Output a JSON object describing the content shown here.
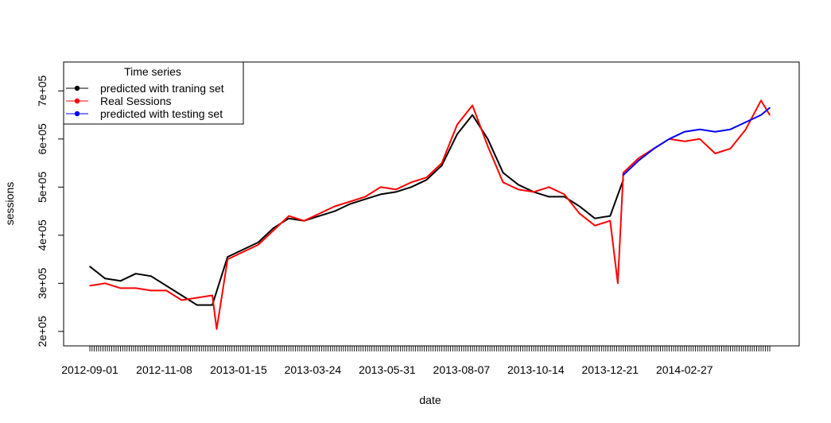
{
  "chart_data": {
    "type": "line",
    "title": "",
    "xlabel": "date",
    "ylabel": "sessions",
    "ylim": [
      170000,
      760000
    ],
    "x_start": "2012-09-01",
    "x_end": "2014-05-16",
    "x_ticks": [
      "2012-09-01",
      "2012-11-08",
      "2013-01-15",
      "2013-03-24",
      "2013-05-31",
      "2013-08-07",
      "2013-10-14",
      "2013-12-21",
      "2014-02-27"
    ],
    "y_ticks": [
      {
        "value": 200000,
        "label": "2e+05"
      },
      {
        "value": 300000,
        "label": "3e+05"
      },
      {
        "value": 400000,
        "label": "4e+05"
      },
      {
        "value": 500000,
        "label": "5e+05"
      },
      {
        "value": 600000,
        "label": "6e+05"
      },
      {
        "value": 700000,
        "label": "7e+05"
      }
    ],
    "grid": false,
    "legend": {
      "title": "Time series",
      "placement": "top-left",
      "entries": [
        "predicted with traning set",
        "Real Sessions",
        "predicted with testing set"
      ]
    },
    "series": [
      {
        "name": "predicted with traning set",
        "color": "#000000",
        "x": [
          "2012-09-01",
          "2012-09-15",
          "2012-09-29",
          "2012-10-13",
          "2012-10-27",
          "2012-11-10",
          "2012-11-24",
          "2012-12-08",
          "2012-12-22",
          "2013-01-05",
          "2013-01-19",
          "2013-02-02",
          "2013-02-16",
          "2013-03-02",
          "2013-03-16",
          "2013-03-30",
          "2013-04-13",
          "2013-04-27",
          "2013-05-11",
          "2013-05-25",
          "2013-06-08",
          "2013-06-22",
          "2013-07-06",
          "2013-07-20",
          "2013-08-03",
          "2013-08-17",
          "2013-08-31",
          "2013-09-14",
          "2013-09-28",
          "2013-10-12",
          "2013-10-26",
          "2013-11-09",
          "2013-11-23",
          "2013-12-07",
          "2013-12-21",
          "2014-01-02"
        ],
        "values": [
          335000,
          310000,
          305000,
          320000,
          315000,
          295000,
          275000,
          255000,
          255000,
          355000,
          370000,
          385000,
          415000,
          435000,
          430000,
          440000,
          450000,
          465000,
          475000,
          485000,
          490000,
          500000,
          515000,
          545000,
          610000,
          650000,
          600000,
          530000,
          505000,
          490000,
          480000,
          480000,
          460000,
          435000,
          440000,
          515000
        ]
      },
      {
        "name": "Real Sessions",
        "color": "#ff0000",
        "x": [
          "2012-09-01",
          "2012-09-15",
          "2012-09-29",
          "2012-10-13",
          "2012-10-27",
          "2012-11-10",
          "2012-11-24",
          "2012-12-08",
          "2012-12-22",
          "2012-12-26",
          "2013-01-05",
          "2013-01-19",
          "2013-02-02",
          "2013-02-16",
          "2013-03-02",
          "2013-03-16",
          "2013-03-30",
          "2013-04-13",
          "2013-04-27",
          "2013-05-11",
          "2013-05-25",
          "2013-06-08",
          "2013-06-22",
          "2013-07-06",
          "2013-07-20",
          "2013-08-03",
          "2013-08-17",
          "2013-08-31",
          "2013-09-14",
          "2013-09-28",
          "2013-10-12",
          "2013-10-26",
          "2013-11-09",
          "2013-11-23",
          "2013-12-07",
          "2013-12-21",
          "2013-12-28",
          "2014-01-02",
          "2014-01-16",
          "2014-01-30",
          "2014-02-13",
          "2014-02-27",
          "2014-03-13",
          "2014-03-27",
          "2014-04-10",
          "2014-04-24",
          "2014-05-08",
          "2014-05-16"
        ],
        "values": [
          295000,
          300000,
          290000,
          290000,
          285000,
          285000,
          265000,
          270000,
          275000,
          205000,
          350000,
          365000,
          380000,
          410000,
          440000,
          430000,
          445000,
          460000,
          470000,
          480000,
          500000,
          495000,
          510000,
          520000,
          550000,
          630000,
          670000,
          585000,
          510000,
          495000,
          490000,
          500000,
          485000,
          445000,
          420000,
          430000,
          300000,
          530000,
          560000,
          580000,
          600000,
          595000,
          600000,
          570000,
          580000,
          620000,
          680000,
          650000
        ]
      },
      {
        "name": "predicted with testing set",
        "color": "#0000ff",
        "x": [
          "2014-01-02",
          "2014-01-16",
          "2014-01-30",
          "2014-02-13",
          "2014-02-27",
          "2014-03-13",
          "2014-03-27",
          "2014-04-10",
          "2014-04-24",
          "2014-05-08",
          "2014-05-16"
        ],
        "values": [
          525000,
          555000,
          580000,
          600000,
          615000,
          620000,
          615000,
          620000,
          635000,
          650000,
          665000
        ]
      }
    ]
  }
}
